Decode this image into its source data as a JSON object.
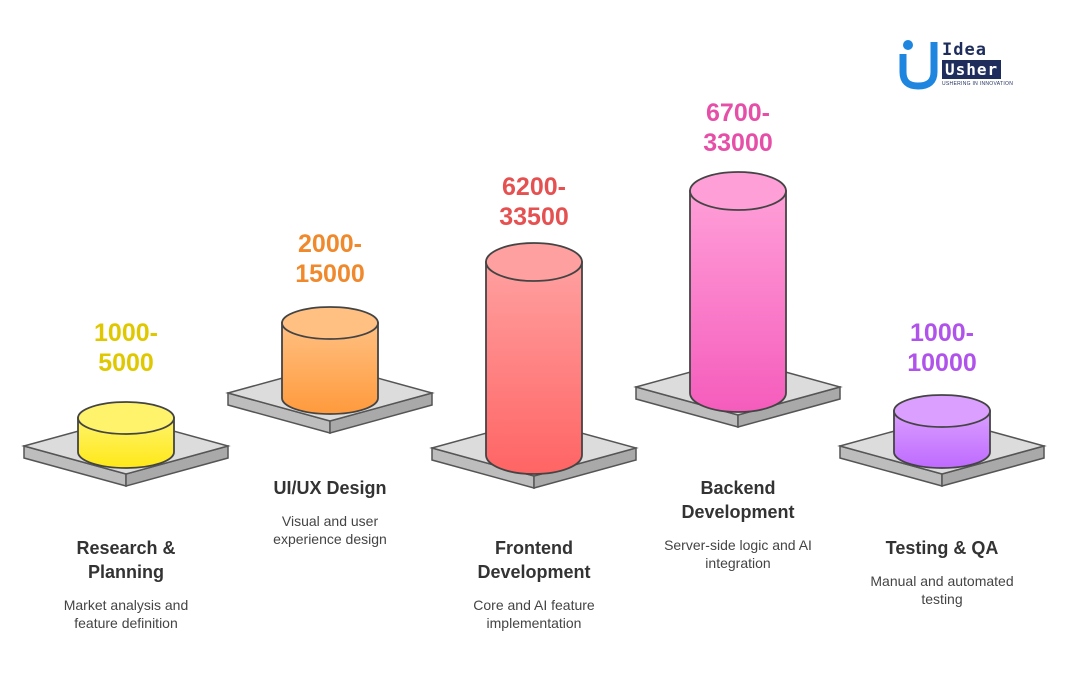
{
  "logo": {
    "word1": "Idea",
    "word2": "Usher",
    "tagline": "USHERING IN INNOVATION"
  },
  "stages": [
    {
      "value_line1": "1000-",
      "value_line2": "5000",
      "title": "Research &\nPlanning",
      "description": "Market analysis and\nfeature definition",
      "color": "#e0c800",
      "fill_top": "#fff36b",
      "fill_bottom": "#ffe818"
    },
    {
      "value_line1": "2000-",
      "value_line2": "15000",
      "title": "UI/UX Design",
      "description": "Visual and user\nexperience design",
      "color": "#f0882c",
      "fill_top": "#ffc082",
      "fill_bottom": "#ff9a3c"
    },
    {
      "value_line1": "6200-",
      "value_line2": "33500",
      "title": "Frontend\nDevelopment",
      "description": "Core and AI feature\nimplementation",
      "color": "#e55050",
      "fill_top": "#ffa0a0",
      "fill_bottom": "#ff6464"
    },
    {
      "value_line1": "6700-",
      "value_line2": "33000",
      "title": "Backend\nDevelopment",
      "description": "Server-side logic and AI\nintegration",
      "color": "#e64fa8",
      "fill_top": "#ff9fd8",
      "fill_bottom": "#f55cbc"
    },
    {
      "value_line1": "1000-",
      "value_line2": "10000",
      "title": "Testing & QA",
      "description": "Manual and automated\ntesting",
      "color": "#b053ea",
      "fill_top": "#dba0ff",
      "fill_bottom": "#be6aff"
    }
  ]
}
